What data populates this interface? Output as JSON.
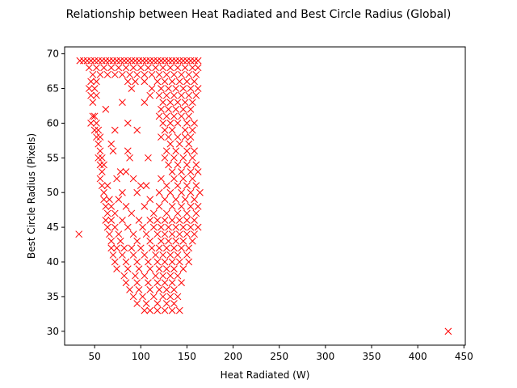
{
  "chart_data": {
    "type": "scatter",
    "title": "Relationship between Heat Radiated and Best Circle Radius (Global)",
    "xlabel": "Heat Radiated (W)",
    "ylabel": "Best Circle Radius (Pixels)",
    "xlim": [
      17.5,
      451.5
    ],
    "ylim": [
      28,
      71
    ],
    "xticks": [
      50,
      100,
      150,
      200,
      250,
      300,
      350,
      400,
      450
    ],
    "yticks": [
      30,
      35,
      40,
      45,
      50,
      55,
      60,
      65,
      70
    ],
    "grid": false,
    "marker": "x",
    "marker_color": "#ff0000",
    "series": [
      {
        "points": [
          [
            34,
            69
          ],
          [
            38,
            69
          ],
          [
            42,
            69
          ],
          [
            46,
            69
          ],
          [
            50,
            69
          ],
          [
            54,
            69
          ],
          [
            58,
            69
          ],
          [
            62,
            69
          ],
          [
            66,
            69
          ],
          [
            70,
            69
          ],
          [
            74,
            69
          ],
          [
            78,
            69
          ],
          [
            82,
            69
          ],
          [
            86,
            69
          ],
          [
            90,
            69
          ],
          [
            94,
            69
          ],
          [
            98,
            69
          ],
          [
            102,
            69
          ],
          [
            106,
            69
          ],
          [
            110,
            69
          ],
          [
            114,
            69
          ],
          [
            118,
            69
          ],
          [
            122,
            69
          ],
          [
            126,
            69
          ],
          [
            130,
            69
          ],
          [
            134,
            69
          ],
          [
            138,
            69
          ],
          [
            142,
            69
          ],
          [
            146,
            69
          ],
          [
            150,
            69
          ],
          [
            154,
            69
          ],
          [
            158,
            69
          ],
          [
            162,
            69
          ],
          [
            44,
            68
          ],
          [
            52,
            68
          ],
          [
            60,
            68
          ],
          [
            68,
            68
          ],
          [
            76,
            68
          ],
          [
            84,
            68
          ],
          [
            92,
            68
          ],
          [
            100,
            68
          ],
          [
            108,
            68
          ],
          [
            116,
            68
          ],
          [
            124,
            68
          ],
          [
            132,
            68
          ],
          [
            140,
            68
          ],
          [
            148,
            68
          ],
          [
            156,
            68
          ],
          [
            162,
            68
          ],
          [
            48,
            67
          ],
          [
            56,
            67
          ],
          [
            64,
            67
          ],
          [
            72,
            67
          ],
          [
            80,
            67
          ],
          [
            88,
            67
          ],
          [
            96,
            67
          ],
          [
            104,
            67
          ],
          [
            112,
            67
          ],
          [
            120,
            67
          ],
          [
            128,
            67
          ],
          [
            136,
            67
          ],
          [
            144,
            67
          ],
          [
            152,
            67
          ],
          [
            160,
            67
          ],
          [
            46,
            66
          ],
          [
            52,
            66
          ],
          [
            86,
            66
          ],
          [
            94,
            66
          ],
          [
            104,
            66
          ],
          [
            118,
            66
          ],
          [
            126,
            66
          ],
          [
            134,
            66
          ],
          [
            142,
            66
          ],
          [
            150,
            66
          ],
          [
            158,
            66
          ],
          [
            44,
            65
          ],
          [
            50,
            65
          ],
          [
            90,
            65
          ],
          [
            112,
            65
          ],
          [
            122,
            65
          ],
          [
            130,
            65
          ],
          [
            138,
            65
          ],
          [
            146,
            65
          ],
          [
            154,
            65
          ],
          [
            162,
            65
          ],
          [
            46,
            64
          ],
          [
            52,
            64
          ],
          [
            110,
            64
          ],
          [
            120,
            64
          ],
          [
            128,
            64
          ],
          [
            136,
            64
          ],
          [
            144,
            64
          ],
          [
            152,
            64
          ],
          [
            160,
            64
          ],
          [
            48,
            63
          ],
          [
            80,
            63
          ],
          [
            104,
            63
          ],
          [
            124,
            63
          ],
          [
            132,
            63
          ],
          [
            140,
            63
          ],
          [
            148,
            63
          ],
          [
            156,
            63
          ],
          [
            62,
            62
          ],
          [
            122,
            62
          ],
          [
            130,
            62
          ],
          [
            138,
            62
          ],
          [
            146,
            62
          ],
          [
            154,
            62
          ],
          [
            48,
            61
          ],
          [
            50,
            61
          ],
          [
            120,
            61
          ],
          [
            128,
            61
          ],
          [
            136,
            61
          ],
          [
            144,
            61
          ],
          [
            152,
            61
          ],
          [
            46,
            60
          ],
          [
            52,
            60
          ],
          [
            86,
            60
          ],
          [
            124,
            60
          ],
          [
            132,
            60
          ],
          [
            140,
            60
          ],
          [
            150,
            60
          ],
          [
            158,
            60
          ],
          [
            50,
            59
          ],
          [
            54,
            59
          ],
          [
            72,
            59
          ],
          [
            96,
            59
          ],
          [
            126,
            59
          ],
          [
            134,
            59
          ],
          [
            148,
            59
          ],
          [
            156,
            59
          ],
          [
            52,
            58
          ],
          [
            56,
            58
          ],
          [
            122,
            58
          ],
          [
            130,
            58
          ],
          [
            140,
            58
          ],
          [
            148,
            58
          ],
          [
            154,
            58
          ],
          [
            54,
            57
          ],
          [
            68,
            57
          ],
          [
            132,
            57
          ],
          [
            142,
            57
          ],
          [
            152,
            57
          ],
          [
            56,
            56
          ],
          [
            70,
            56
          ],
          [
            86,
            56
          ],
          [
            128,
            56
          ],
          [
            138,
            56
          ],
          [
            150,
            56
          ],
          [
            158,
            56
          ],
          [
            54,
            55
          ],
          [
            58,
            55
          ],
          [
            88,
            55
          ],
          [
            108,
            55
          ],
          [
            126,
            55
          ],
          [
            136,
            55
          ],
          [
            146,
            55
          ],
          [
            156,
            55
          ],
          [
            56,
            54
          ],
          [
            60,
            54
          ],
          [
            130,
            54
          ],
          [
            140,
            54
          ],
          [
            150,
            54
          ],
          [
            160,
            54
          ],
          [
            58,
            53
          ],
          [
            78,
            53
          ],
          [
            84,
            53
          ],
          [
            134,
            53
          ],
          [
            144,
            53
          ],
          [
            154,
            53
          ],
          [
            162,
            53
          ],
          [
            56,
            52
          ],
          [
            74,
            52
          ],
          [
            92,
            52
          ],
          [
            122,
            52
          ],
          [
            136,
            52
          ],
          [
            146,
            52
          ],
          [
            156,
            52
          ],
          [
            58,
            51
          ],
          [
            64,
            51
          ],
          [
            100,
            51
          ],
          [
            106,
            51
          ],
          [
            128,
            51
          ],
          [
            140,
            51
          ],
          [
            150,
            51
          ],
          [
            160,
            51
          ],
          [
            60,
            50
          ],
          [
            80,
            50
          ],
          [
            96,
            50
          ],
          [
            120,
            50
          ],
          [
            132,
            50
          ],
          [
            144,
            50
          ],
          [
            154,
            50
          ],
          [
            164,
            50
          ],
          [
            60,
            49
          ],
          [
            66,
            49
          ],
          [
            76,
            49
          ],
          [
            110,
            49
          ],
          [
            126,
            49
          ],
          [
            138,
            49
          ],
          [
            148,
            49
          ],
          [
            158,
            49
          ],
          [
            62,
            48
          ],
          [
            68,
            48
          ],
          [
            84,
            48
          ],
          [
            104,
            48
          ],
          [
            120,
            48
          ],
          [
            134,
            48
          ],
          [
            144,
            48
          ],
          [
            154,
            48
          ],
          [
            162,
            48
          ],
          [
            64,
            47
          ],
          [
            72,
            47
          ],
          [
            90,
            47
          ],
          [
            114,
            47
          ],
          [
            128,
            47
          ],
          [
            140,
            47
          ],
          [
            150,
            47
          ],
          [
            160,
            47
          ],
          [
            62,
            46
          ],
          [
            68,
            46
          ],
          [
            80,
            46
          ],
          [
            98,
            46
          ],
          [
            110,
            46
          ],
          [
            118,
            46
          ],
          [
            126,
            46
          ],
          [
            134,
            46
          ],
          [
            142,
            46
          ],
          [
            150,
            46
          ],
          [
            158,
            46
          ],
          [
            64,
            45
          ],
          [
            72,
            45
          ],
          [
            86,
            45
          ],
          [
            102,
            45
          ],
          [
            114,
            45
          ],
          [
            122,
            45
          ],
          [
            130,
            45
          ],
          [
            138,
            45
          ],
          [
            146,
            45
          ],
          [
            154,
            45
          ],
          [
            162,
            45
          ],
          [
            33,
            44
          ],
          [
            66,
            44
          ],
          [
            76,
            44
          ],
          [
            92,
            44
          ],
          [
            106,
            44
          ],
          [
            118,
            44
          ],
          [
            126,
            44
          ],
          [
            134,
            44
          ],
          [
            142,
            44
          ],
          [
            150,
            44
          ],
          [
            158,
            44
          ],
          [
            68,
            43
          ],
          [
            78,
            43
          ],
          [
            96,
            43
          ],
          [
            110,
            43
          ],
          [
            122,
            43
          ],
          [
            130,
            43
          ],
          [
            138,
            43
          ],
          [
            146,
            43
          ],
          [
            156,
            43
          ],
          [
            68,
            42
          ],
          [
            74,
            42
          ],
          [
            82,
            42
          ],
          [
            90,
            42
          ],
          [
            100,
            42
          ],
          [
            112,
            42
          ],
          [
            120,
            42
          ],
          [
            128,
            42
          ],
          [
            136,
            42
          ],
          [
            144,
            42
          ],
          [
            152,
            42
          ],
          [
            70,
            41
          ],
          [
            80,
            41
          ],
          [
            92,
            41
          ],
          [
            104,
            41
          ],
          [
            116,
            41
          ],
          [
            124,
            41
          ],
          [
            132,
            41
          ],
          [
            140,
            41
          ],
          [
            150,
            41
          ],
          [
            72,
            40
          ],
          [
            84,
            40
          ],
          [
            96,
            40
          ],
          [
            108,
            40
          ],
          [
            118,
            40
          ],
          [
            126,
            40
          ],
          [
            134,
            40
          ],
          [
            142,
            40
          ],
          [
            152,
            40
          ],
          [
            74,
            39
          ],
          [
            86,
            39
          ],
          [
            98,
            39
          ],
          [
            110,
            39
          ],
          [
            120,
            39
          ],
          [
            128,
            39
          ],
          [
            136,
            39
          ],
          [
            146,
            39
          ],
          [
            82,
            38
          ],
          [
            94,
            38
          ],
          [
            104,
            38
          ],
          [
            116,
            38
          ],
          [
            124,
            38
          ],
          [
            132,
            38
          ],
          [
            140,
            38
          ],
          [
            84,
            37
          ],
          [
            96,
            37
          ],
          [
            108,
            37
          ],
          [
            118,
            37
          ],
          [
            126,
            37
          ],
          [
            134,
            37
          ],
          [
            144,
            37
          ],
          [
            88,
            36
          ],
          [
            98,
            36
          ],
          [
            110,
            36
          ],
          [
            120,
            36
          ],
          [
            128,
            36
          ],
          [
            136,
            36
          ],
          [
            92,
            35
          ],
          [
            102,
            35
          ],
          [
            114,
            35
          ],
          [
            124,
            35
          ],
          [
            132,
            35
          ],
          [
            140,
            35
          ],
          [
            96,
            34
          ],
          [
            106,
            34
          ],
          [
            118,
            34
          ],
          [
            128,
            34
          ],
          [
            136,
            34
          ],
          [
            104,
            33
          ],
          [
            110,
            33
          ],
          [
            118,
            33
          ],
          [
            126,
            33
          ],
          [
            134,
            33
          ],
          [
            142,
            33
          ],
          [
            433,
            30
          ]
        ]
      }
    ]
  }
}
